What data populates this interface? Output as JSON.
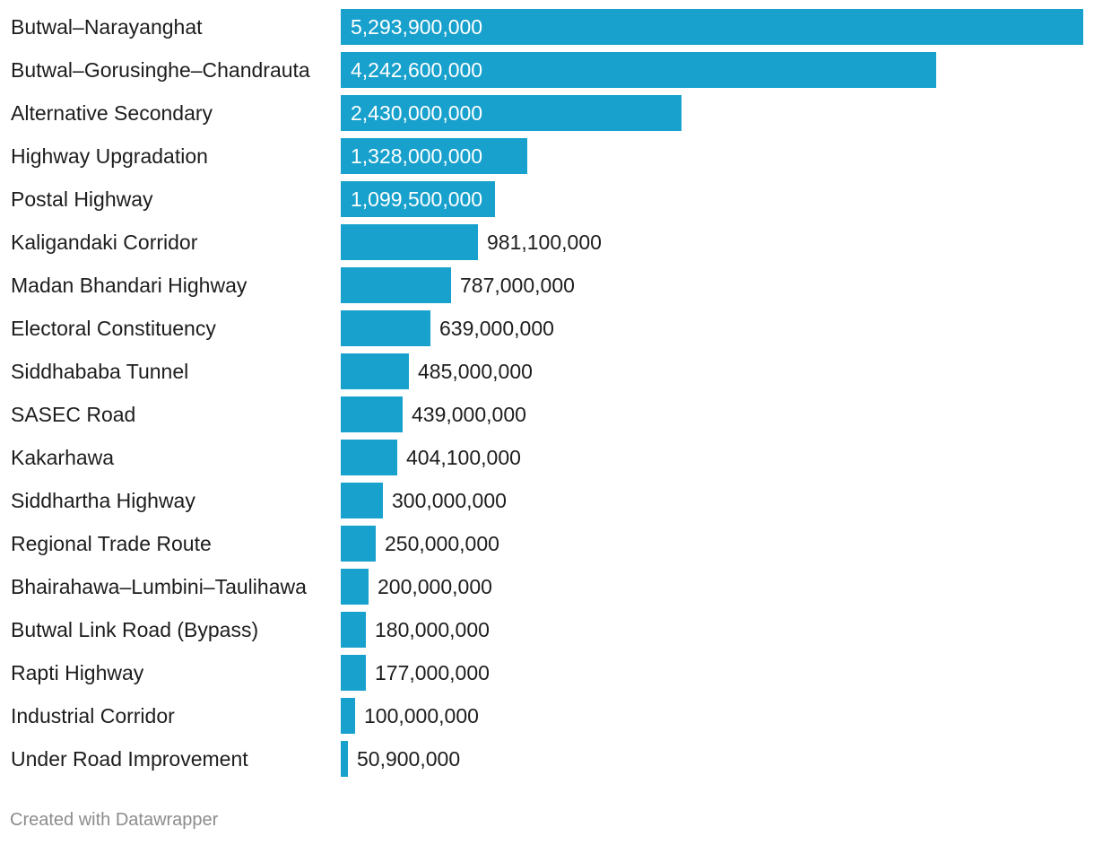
{
  "chart_data": {
    "type": "bar",
    "orientation": "horizontal",
    "title": "",
    "xlabel": "",
    "ylabel": "",
    "categories": [
      "Butwal–Narayanghat",
      "Butwal–Gorusinghe–Chandrauta",
      "Alternative Secondary",
      "Highway Upgradation",
      "Postal Highway",
      "Kaligandaki Corridor",
      "Madan Bhandari Highway",
      "Electoral Constituency",
      "Siddhababa Tunnel",
      "SASEC Road",
      "Kakarhawa",
      "Siddhartha Highway",
      "Regional Trade Route",
      "Bhairahawa–Lumbini–Taulihawa",
      "Butwal Link Road (Bypass)",
      "Rapti Highway",
      "Industrial Corridor",
      "Under Road Improvement"
    ],
    "values": [
      5293900000,
      4242600000,
      2430000000,
      1328000000,
      1099500000,
      981100000,
      787000000,
      639000000,
      485000000,
      439000000,
      404100000,
      300000000,
      250000000,
      200000000,
      180000000,
      177000000,
      100000000,
      50900000
    ],
    "value_labels": [
      "5,293,900,000",
      "4,242,600,000",
      "2,430,000,000",
      "1,328,000,000",
      "1,099,500,000",
      "981,100,000",
      "787,000,000",
      "639,000,000",
      "485,000,000",
      "439,000,000",
      "404,100,000",
      "300,000,000",
      "250,000,000",
      "200,000,000",
      "180,000,000",
      "177,000,000",
      "100,000,000",
      "50,900,000"
    ],
    "xlim": [
      0,
      5293900000
    ],
    "grid": false,
    "legend": "none"
  },
  "colors": {
    "bar": "#18a1cd",
    "text": "#1d1d1d",
    "inside_text": "#ffffff",
    "footer": "#8c8c8c"
  },
  "footer": {
    "credit": "Created with Datawrapper"
  }
}
